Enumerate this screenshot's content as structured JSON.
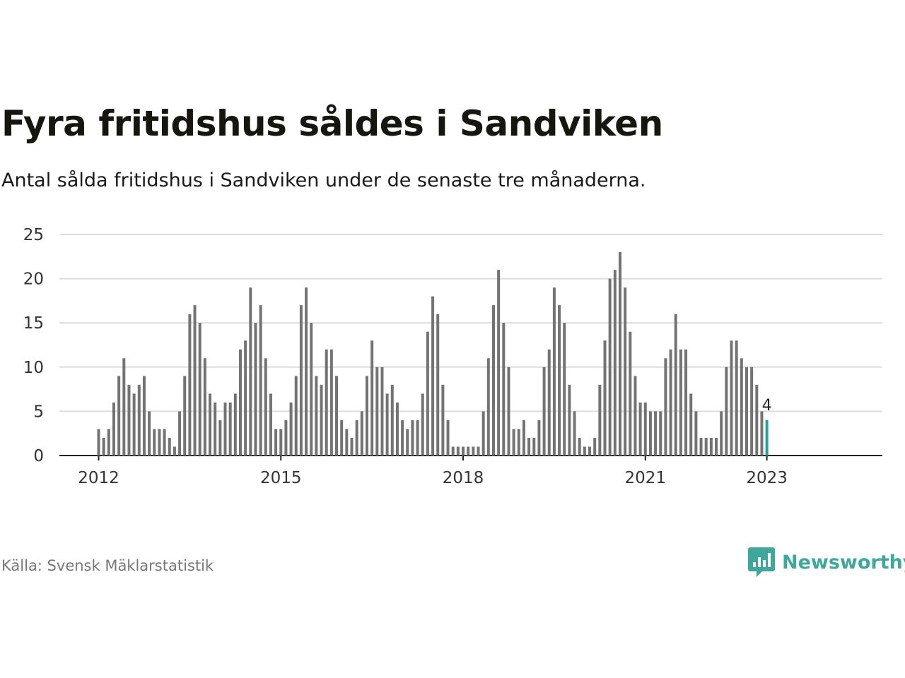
{
  "title": "Fyra fritidshus såldes i Sandviken",
  "subtitle": "Antal sålda fritidshus i Sandviken under de senaste tre månaderna.",
  "source": "Källa: Svensk Mäklarstatistik",
  "brand": {
    "name": "Newsworthy",
    "icon": "newsworthy-logo-icon"
  },
  "colors": {
    "bar": "#737373",
    "highlight": "#22a39a",
    "grid": "#dddddd",
    "axis": "#222222"
  },
  "chart_data": {
    "type": "bar",
    "ylim": [
      0,
      25
    ],
    "yticks": [
      "0",
      "5",
      "10",
      "15",
      "20",
      "25"
    ],
    "xticks": [
      "2012",
      "2015",
      "2018",
      "2021",
      "2023"
    ],
    "grid": true,
    "values": [
      3,
      2,
      3,
      6,
      9,
      11,
      8,
      7,
      8,
      9,
      5,
      3,
      3,
      3,
      2,
      1,
      5,
      9,
      16,
      17,
      15,
      11,
      7,
      6,
      4,
      6,
      6,
      7,
      12,
      13,
      19,
      15,
      17,
      11,
      7,
      3,
      3,
      4,
      6,
      9,
      17,
      19,
      15,
      9,
      8,
      12,
      12,
      9,
      4,
      3,
      2,
      4,
      5,
      9,
      13,
      10,
      10,
      7,
      8,
      6,
      4,
      3,
      4,
      4,
      7,
      14,
      18,
      16,
      8,
      4,
      1,
      1,
      1,
      1,
      1,
      1,
      5,
      11,
      17,
      21,
      15,
      10,
      3,
      3,
      4,
      2,
      2,
      4,
      10,
      12,
      19,
      17,
      15,
      8,
      5,
      2,
      1,
      1,
      2,
      8,
      13,
      20,
      21,
      23,
      19,
      14,
      9,
      6,
      6,
      5,
      5,
      5,
      11,
      12,
      16,
      12,
      12,
      7,
      5,
      2,
      2,
      2,
      2,
      5,
      10,
      13,
      13,
      11,
      10,
      10,
      8,
      5,
      4
    ],
    "highlight_label": "4"
  }
}
